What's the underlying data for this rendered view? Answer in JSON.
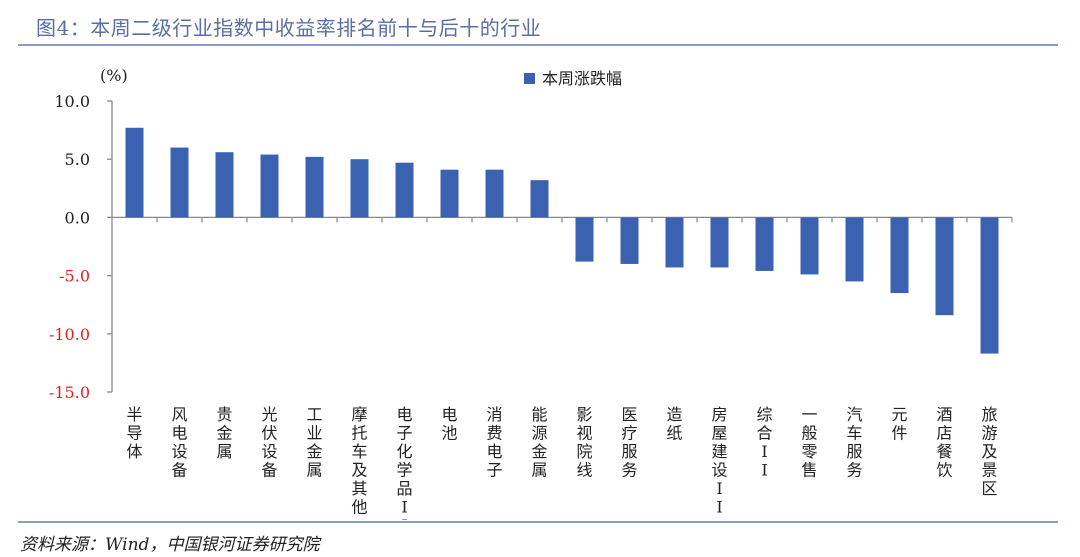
{
  "header": {
    "title": "图4：本周二级行业指数中收益率排名前十与后十的行业"
  },
  "footer": {
    "source": "资料来源：Wind，中国银河证券研究院"
  },
  "chart_data": {
    "type": "bar",
    "unit_label": "(%)",
    "categories": [
      "半导体",
      "风电设备",
      "贵金属",
      "光伏设备",
      "工业金属",
      "摩托车及其他",
      "电子化学品II",
      "电池",
      "消费电子",
      "能源金属",
      "影视院线",
      "医疗服务",
      "造纸",
      "房屋建设II",
      "综合II",
      "一般零售",
      "汽车服务",
      "元件",
      "酒店餐饮",
      "旅游及景区"
    ],
    "series": [
      {
        "name": "本周涨跌幅",
        "color": "#3a62b0",
        "values": [
          7.7,
          6.0,
          5.6,
          5.4,
          5.2,
          5.0,
          4.7,
          4.1,
          4.1,
          3.2,
          -3.8,
          -4.0,
          -4.3,
          -4.3,
          -4.6,
          -4.9,
          -5.5,
          -6.5,
          -8.4,
          -11.7
        ]
      }
    ],
    "ylim": [
      -15.0,
      10.0
    ],
    "yticks": [
      "10.0",
      "5.0",
      "0.0",
      "-5.0",
      "-10.0",
      "-15.0"
    ],
    "ytick_values": [
      10,
      5,
      0,
      -5,
      -10,
      -15
    ],
    "negative_tick_color": "#e02020",
    "positive_tick_color": "#222222",
    "legend_position": "top-center",
    "grid": false
  }
}
